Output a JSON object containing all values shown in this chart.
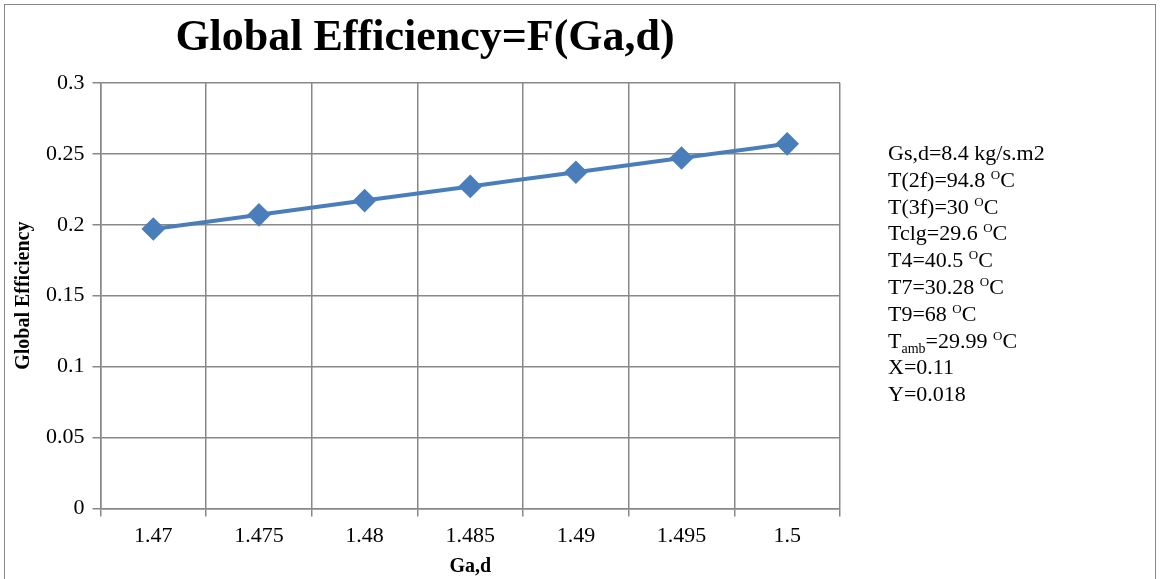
{
  "chart_data": {
    "type": "line",
    "title": "Global Efficiency=F(Ga,d)",
    "xlabel": "Ga,d",
    "ylabel": "Global Efficiency",
    "categories": [
      "1.47",
      "1.475",
      "1.48",
      "1.485",
      "1.49",
      "1.495",
      "1.5"
    ],
    "series": [
      {
        "color": "#4a7ebb",
        "values": [
          0.197,
          0.207,
          0.217,
          0.227,
          0.237,
          0.247,
          0.257
        ]
      }
    ],
    "ylim": [
      0,
      0.3
    ],
    "yticks": [
      0,
      0.05,
      0.1,
      0.15,
      0.2,
      0.25,
      0.3
    ],
    "grid": true,
    "legend": false,
    "marker": "diamond",
    "line_style": "solid",
    "annotations": [
      "Gs,d=8.4 kg/s.m2",
      "T(2f)=94.8 $^{O}$C",
      "T(3f)=30 $^{O}$C",
      "Tclg=29.6 $^{O}$C",
      "T4=40.5 $^{O}$C",
      "T7=30.28 $^{O}$C",
      "T9=68 $^{O}$C",
      "T$_{amb}$=29.99 $^{O}$C",
      "X=0.11",
      "Y=0.018"
    ]
  }
}
